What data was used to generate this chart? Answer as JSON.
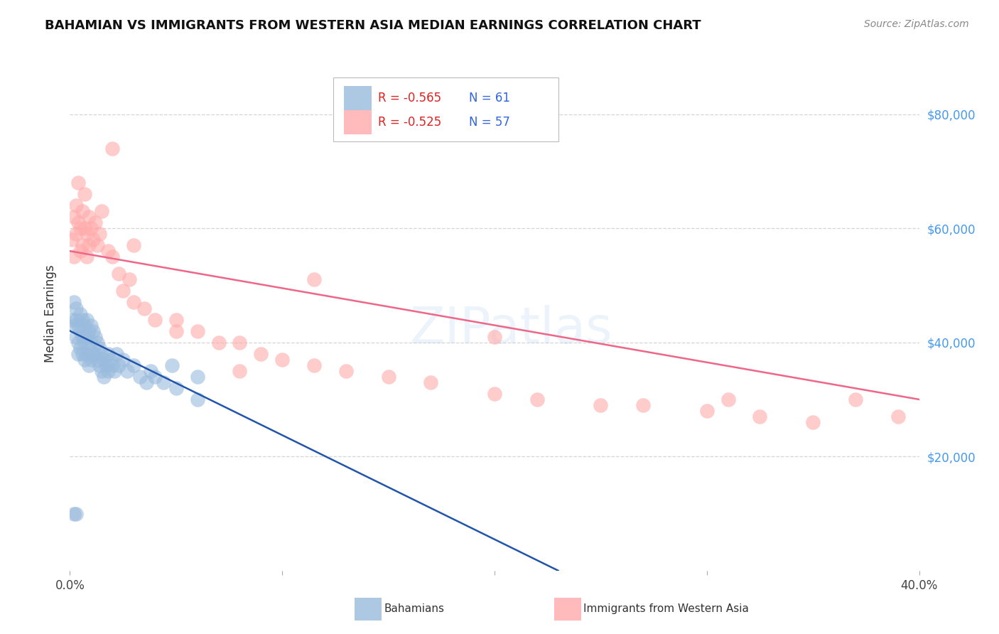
{
  "title": "BAHAMIAN VS IMMIGRANTS FROM WESTERN ASIA MEDIAN EARNINGS CORRELATION CHART",
  "source": "Source: ZipAtlas.com",
  "ylabel": "Median Earnings",
  "y_ticks": [
    20000,
    40000,
    60000,
    80000
  ],
  "y_tick_labels": [
    "$20,000",
    "$40,000",
    "$60,000",
    "$80,000"
  ],
  "xlim": [
    0.0,
    0.4
  ],
  "ylim": [
    0,
    90000
  ],
  "legend_label1": "Bahamians",
  "legend_label2": "Immigrants from Western Asia",
  "r1": "-0.565",
  "n1": "61",
  "r2": "-0.525",
  "n2": "57",
  "color_blue": "#99BBDD",
  "color_pink": "#FFAAAA",
  "line_color_blue": "#2255AA",
  "line_color_pink": "#EE6688",
  "blue_scatter_x": [
    0.001,
    0.002,
    0.002,
    0.003,
    0.003,
    0.003,
    0.004,
    0.004,
    0.004,
    0.005,
    0.005,
    0.005,
    0.006,
    0.006,
    0.006,
    0.007,
    0.007,
    0.007,
    0.008,
    0.008,
    0.008,
    0.009,
    0.009,
    0.009,
    0.01,
    0.01,
    0.01,
    0.011,
    0.011,
    0.012,
    0.012,
    0.013,
    0.013,
    0.014,
    0.014,
    0.015,
    0.015,
    0.016,
    0.016,
    0.017,
    0.018,
    0.018,
    0.019,
    0.02,
    0.021,
    0.022,
    0.023,
    0.025,
    0.027,
    0.03,
    0.033,
    0.036,
    0.038,
    0.04,
    0.044,
    0.05,
    0.06,
    0.002,
    0.003,
    0.048,
    0.06
  ],
  "blue_scatter_y": [
    44000,
    47000,
    43000,
    46000,
    41000,
    44000,
    43000,
    40000,
    38000,
    45000,
    42000,
    39000,
    44000,
    41000,
    38000,
    43000,
    40000,
    37000,
    44000,
    41000,
    38000,
    42000,
    39000,
    36000,
    43000,
    40000,
    37000,
    42000,
    38000,
    41000,
    38000,
    40000,
    37000,
    39000,
    36000,
    38000,
    35000,
    37000,
    34000,
    36000,
    38000,
    35000,
    37000,
    36000,
    35000,
    38000,
    36000,
    37000,
    35000,
    36000,
    34000,
    33000,
    35000,
    34000,
    33000,
    32000,
    30000,
    10000,
    10000,
    36000,
    34000
  ],
  "pink_scatter_x": [
    0.001,
    0.002,
    0.002,
    0.003,
    0.003,
    0.004,
    0.004,
    0.005,
    0.005,
    0.006,
    0.006,
    0.007,
    0.007,
    0.008,
    0.008,
    0.009,
    0.009,
    0.01,
    0.011,
    0.012,
    0.013,
    0.014,
    0.015,
    0.018,
    0.02,
    0.023,
    0.025,
    0.028,
    0.03,
    0.035,
    0.04,
    0.05,
    0.06,
    0.07,
    0.08,
    0.09,
    0.1,
    0.115,
    0.13,
    0.15,
    0.17,
    0.2,
    0.22,
    0.25,
    0.27,
    0.3,
    0.325,
    0.35,
    0.37,
    0.39,
    0.02,
    0.03,
    0.05,
    0.08,
    0.115,
    0.2,
    0.31
  ],
  "pink_scatter_y": [
    58000,
    62000,
    55000,
    64000,
    59000,
    68000,
    61000,
    60000,
    56000,
    63000,
    57000,
    66000,
    60000,
    59000,
    55000,
    62000,
    57000,
    60000,
    58000,
    61000,
    57000,
    59000,
    63000,
    56000,
    55000,
    52000,
    49000,
    51000,
    47000,
    46000,
    44000,
    42000,
    42000,
    40000,
    40000,
    38000,
    37000,
    36000,
    35000,
    34000,
    33000,
    31000,
    30000,
    29000,
    29000,
    28000,
    27000,
    26000,
    30000,
    27000,
    74000,
    57000,
    44000,
    35000,
    51000,
    41000,
    30000
  ]
}
